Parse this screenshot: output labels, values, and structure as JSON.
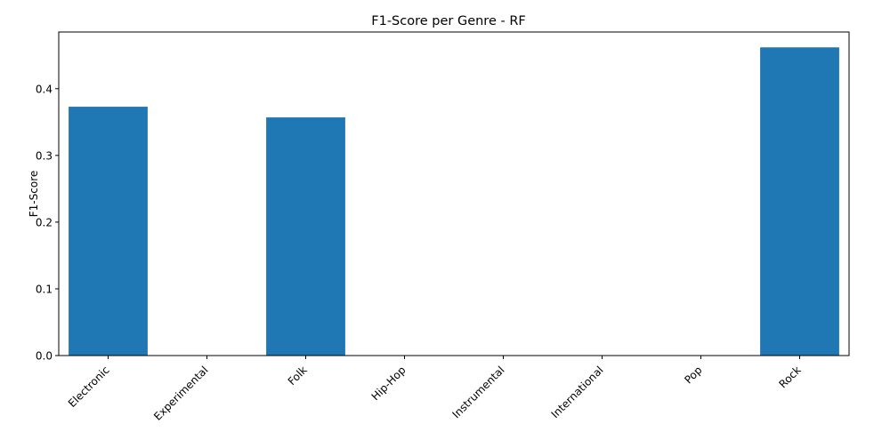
{
  "chart_data": {
    "type": "bar",
    "title": "F1-Score per Genre - RF",
    "xlabel": "",
    "ylabel": "F1-Score",
    "categories": [
      "Electronic",
      "Experimental",
      "Folk",
      "Hip-Hop",
      "Instrumental",
      "International",
      "Pop",
      "Rock"
    ],
    "values": [
      0.373,
      0.0,
      0.357,
      0.0,
      0.0,
      0.0,
      0.0,
      0.462
    ],
    "ylim": [
      0,
      0.485
    ],
    "yticks": [
      0.0,
      0.1,
      0.2,
      0.3,
      0.4
    ],
    "ytick_labels": [
      "0.0",
      "0.1",
      "0.2",
      "0.3",
      "0.4"
    ],
    "grid": false,
    "legend": "none",
    "bar_color": "#1f77b4"
  }
}
